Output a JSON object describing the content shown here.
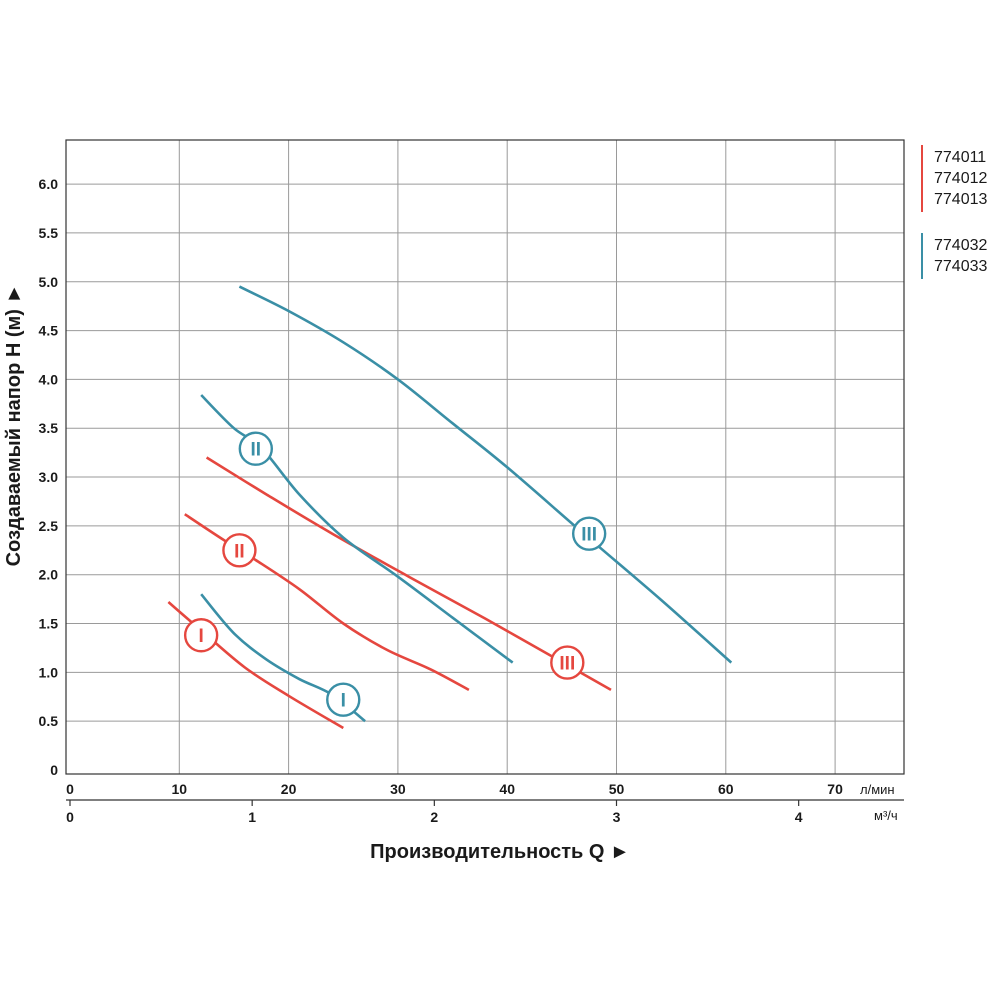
{
  "chart_data": {
    "type": "line",
    "ylabel": "Создаваемый напор H (м) ►",
    "xlabel": "Производительность Q ►",
    "x_unit_primary": "л/мин",
    "x_unit_secondary": "м³/ч",
    "xlim": [
      0,
      75
    ],
    "ylim": [
      0,
      6.5
    ],
    "grid": true,
    "y_ticks": [
      {
        "value": 0,
        "label": "0"
      },
      {
        "value": 0.5,
        "label": "0.5"
      },
      {
        "value": 1.0,
        "label": "1.0"
      },
      {
        "value": 1.5,
        "label": "1.5"
      },
      {
        "value": 2.0,
        "label": "2.0"
      },
      {
        "value": 2.5,
        "label": "2.5"
      },
      {
        "value": 3.0,
        "label": "3.0"
      },
      {
        "value": 3.5,
        "label": "3.5"
      },
      {
        "value": 4.0,
        "label": "4.0"
      },
      {
        "value": 4.5,
        "label": "4.5"
      },
      {
        "value": 5.0,
        "label": "5.0"
      },
      {
        "value": 5.5,
        "label": "5.5"
      },
      {
        "value": 6.0,
        "label": "6.0"
      }
    ],
    "x_ticks_primary": [
      {
        "value": 0,
        "label": "0"
      },
      {
        "value": 10,
        "label": "10"
      },
      {
        "value": 20,
        "label": "20"
      },
      {
        "value": 30,
        "label": "30"
      },
      {
        "value": 40,
        "label": "40"
      },
      {
        "value": 50,
        "label": "50"
      },
      {
        "value": 60,
        "label": "60"
      },
      {
        "value": 70,
        "label": "70"
      }
    ],
    "x_ticks_secondary": [
      {
        "value": 0,
        "label": "0"
      },
      {
        "value": 1,
        "label": "1"
      },
      {
        "value": 2,
        "label": "2"
      },
      {
        "value": 3,
        "label": "3"
      },
      {
        "value": 4,
        "label": "4"
      }
    ],
    "legend": [
      {
        "group": "red",
        "color": "#e5473f",
        "items": [
          "774011",
          "774012",
          "774013"
        ]
      },
      {
        "group": "teal",
        "color": "#3a8fa6",
        "items": [
          "774032",
          "774033"
        ]
      }
    ],
    "series": [
      {
        "group": "red",
        "color": "#e5473f",
        "speed": "I",
        "points": [
          [
            9,
            1.72
          ],
          [
            12,
            1.43
          ],
          [
            16,
            1.05
          ],
          [
            20,
            0.76
          ],
          [
            25,
            0.43
          ]
        ],
        "label_at": [
          12,
          1.38
        ]
      },
      {
        "group": "red",
        "color": "#e5473f",
        "speed": "II",
        "points": [
          [
            10.5,
            2.62
          ],
          [
            14,
            2.36
          ],
          [
            17,
            2.15
          ],
          [
            21,
            1.85
          ],
          [
            25,
            1.5
          ],
          [
            29,
            1.23
          ],
          [
            33,
            1.03
          ],
          [
            36.5,
            0.82
          ]
        ],
        "label_at": [
          15.5,
          2.25
        ]
      },
      {
        "group": "red",
        "color": "#e5473f",
        "speed": "III",
        "points": [
          [
            12.5,
            3.2
          ],
          [
            18,
            2.82
          ],
          [
            24,
            2.42
          ],
          [
            31,
            1.98
          ],
          [
            38,
            1.55
          ],
          [
            44,
            1.17
          ],
          [
            49.5,
            0.82
          ]
        ],
        "label_at": [
          45.5,
          1.1
        ]
      },
      {
        "group": "teal",
        "color": "#3a8fa6",
        "speed": "I",
        "points": [
          [
            12,
            1.8
          ],
          [
            15,
            1.4
          ],
          [
            18,
            1.13
          ],
          [
            21,
            0.93
          ],
          [
            24,
            0.77
          ],
          [
            27,
            0.5
          ]
        ],
        "label_at": [
          25,
          0.72
        ]
      },
      {
        "group": "teal",
        "color": "#3a8fa6",
        "speed": "II",
        "points": [
          [
            12,
            3.84
          ],
          [
            15,
            3.5
          ],
          [
            17.5,
            3.3
          ],
          [
            21,
            2.82
          ],
          [
            25,
            2.38
          ],
          [
            30,
            1.98
          ],
          [
            35,
            1.56
          ],
          [
            40.5,
            1.1
          ]
        ],
        "label_at": [
          17,
          3.29
        ]
      },
      {
        "group": "teal",
        "color": "#3a8fa6",
        "speed": "III",
        "points": [
          [
            15.5,
            4.95
          ],
          [
            20,
            4.7
          ],
          [
            25,
            4.38
          ],
          [
            30,
            4.0
          ],
          [
            35,
            3.55
          ],
          [
            40,
            3.1
          ],
          [
            47,
            2.42
          ],
          [
            54,
            1.75
          ],
          [
            60.5,
            1.1
          ]
        ],
        "label_at": [
          47.5,
          2.42
        ]
      }
    ]
  }
}
